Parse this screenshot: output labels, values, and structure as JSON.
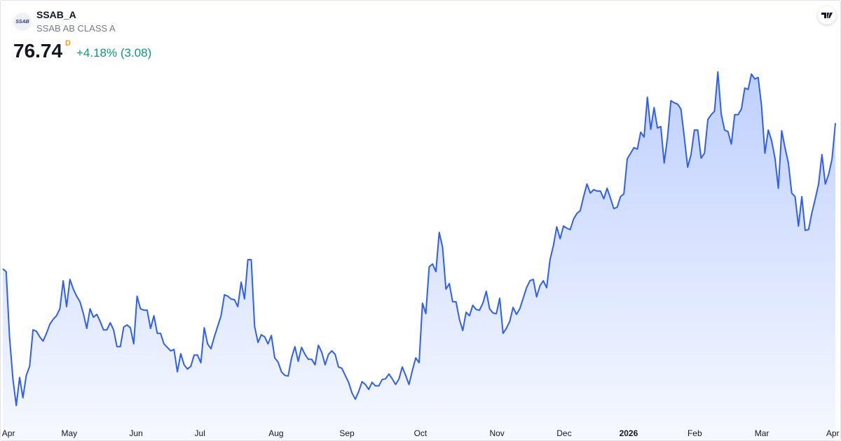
{
  "header": {
    "logo": "SSAB",
    "symbol": "SSAB_A",
    "name": "SSAB AB CLASS A",
    "price": "76.74",
    "interval": "D",
    "change": "+4.18% (3.08)"
  },
  "chart_data": {
    "type": "area",
    "color": "#2f5ff0",
    "values": [
      64.26,
      64.02,
      58.44,
      54.84,
      52.56,
      54.96,
      53.22,
      55.14,
      55.92,
      59.04,
      58.92,
      58.44,
      58.08,
      58.74,
      59.52,
      59.94,
      60.24,
      60.84,
      63.24,
      61.02,
      63.36,
      62.52,
      61.92,
      61.44,
      60.42,
      59.16,
      60.84,
      60.12,
      60.36,
      59.76,
      59.04,
      59.04,
      59.64,
      59.04,
      57.6,
      57.6,
      59.28,
      59.46,
      59.22,
      57.84,
      61.92,
      60.84,
      60.72,
      60.72,
      59.16,
      60.24,
      58.74,
      58.74,
      57.84,
      57.54,
      57.24,
      57.36,
      55.44,
      57.0,
      56.04,
      55.68,
      55.92,
      56.88,
      56.88,
      56.22,
      59.22,
      57.84,
      57.42,
      58.44,
      59.34,
      60.24,
      62.04,
      61.92,
      61.68,
      61.62,
      61.02,
      63.12,
      61.68,
      65.04,
      65.04,
      59.34,
      57.96,
      58.62,
      58.44,
      57.84,
      58.56,
      56.64,
      56.28,
      55.44,
      55.14,
      55.08,
      56.64,
      57.6,
      56.34,
      57.54,
      56.94,
      56.52,
      56.52,
      56.04,
      57.72,
      57.12,
      56.04,
      56.94,
      57.24,
      56.94,
      55.86,
      55.74,
      55.14,
      54.54,
      53.64,
      53.1,
      53.76,
      54.6,
      54.36,
      53.94,
      54.54,
      54.24,
      54.24,
      54.78,
      54.84,
      55.26,
      54.84,
      54.36,
      54.84,
      55.86,
      55.14,
      54.36,
      55.56,
      56.64,
      56.22,
      61.32,
      60.42,
      64.44,
      64.68,
      64.02,
      67.38,
      66.12,
      62.52,
      63.0,
      61.44,
      61.44,
      59.94,
      58.98,
      60.54,
      60.24,
      61.14,
      60.78,
      60.72,
      61.32,
      62.34,
      60.84,
      60.48,
      60.42,
      61.74,
      58.74,
      59.16,
      59.76,
      60.96,
      60.36,
      60.84,
      61.74,
      62.64,
      63.24,
      63.36,
      61.86,
      62.82,
      63.24,
      62.64,
      65.04,
      66.24,
      67.86,
      66.84,
      67.92,
      67.74,
      67.62,
      68.52,
      69.0,
      69.24,
      70.44,
      71.52,
      70.74,
      71.04,
      70.92,
      70.92,
      70.26,
      71.16,
      70.32,
      69.42,
      69.54,
      70.44,
      70.68,
      73.68,
      74.16,
      74.64,
      74.52,
      75.96,
      75.54,
      78.96,
      76.2,
      78.06,
      76.32,
      76.44,
      73.32,
      75.54,
      78.66,
      78.48,
      78.36,
      77.94,
      75.54,
      72.96,
      74.04,
      76.14,
      76.14,
      73.74,
      74.16,
      77.04,
      77.46,
      77.76,
      81.12,
      77.52,
      76.14,
      76.02,
      74.94,
      77.46,
      77.46,
      77.94,
      79.74,
      79.62,
      80.94,
      80.52,
      80.64,
      78.24,
      74.16,
      76.14,
      75.24,
      73.74,
      71.16,
      76.08,
      74.64,
      73.32,
      70.74,
      70.44,
      67.92,
      70.44,
      67.56,
      67.62,
      69.06,
      70.26,
      71.52,
      74.04,
      71.52,
      72.36,
      73.66,
      76.74
    ],
    "ylim": [
      50,
      85
    ],
    "xlim": [
      0,
      248
    ],
    "xticks": [
      {
        "value": 1.7,
        "label": "Apr"
      },
      {
        "value": 19.8,
        "label": "May"
      },
      {
        "value": 39.7,
        "label": "Jun"
      },
      {
        "value": 58.7,
        "label": "Jul"
      },
      {
        "value": 81.4,
        "label": "Aug"
      },
      {
        "value": 102.5,
        "label": "Sep"
      },
      {
        "value": 124.4,
        "label": "Oct"
      },
      {
        "value": 147.2,
        "label": "Nov"
      },
      {
        "value": 167.2,
        "label": "Dec"
      },
      {
        "value": 186.4,
        "label": "2026"
      },
      {
        "value": 206.1,
        "label": "Feb"
      },
      {
        "value": 226.1,
        "label": "Mar"
      },
      {
        "value": 247.2,
        "label": "Apr"
      }
    ]
  }
}
